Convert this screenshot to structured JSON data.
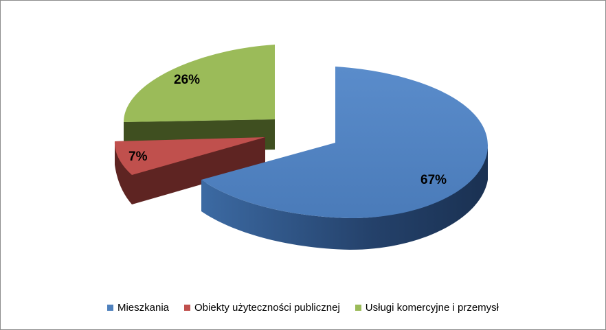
{
  "chart_data": {
    "type": "pie",
    "title": "",
    "legend_position": "bottom",
    "categories": [
      "Mieszkania",
      "Obiekty użyteczności publicznej",
      "Usługi komercyjne i przemysł"
    ],
    "values": [
      67,
      7,
      26
    ],
    "value_labels": [
      "67%",
      "7%",
      "26%"
    ],
    "colors": [
      "#4f81bd",
      "#c0504d",
      "#9bbb59"
    ],
    "side_colors": [
      "#2c4a73",
      "#5e2422",
      "#4a5b26"
    ],
    "style": "3d-exploded"
  }
}
